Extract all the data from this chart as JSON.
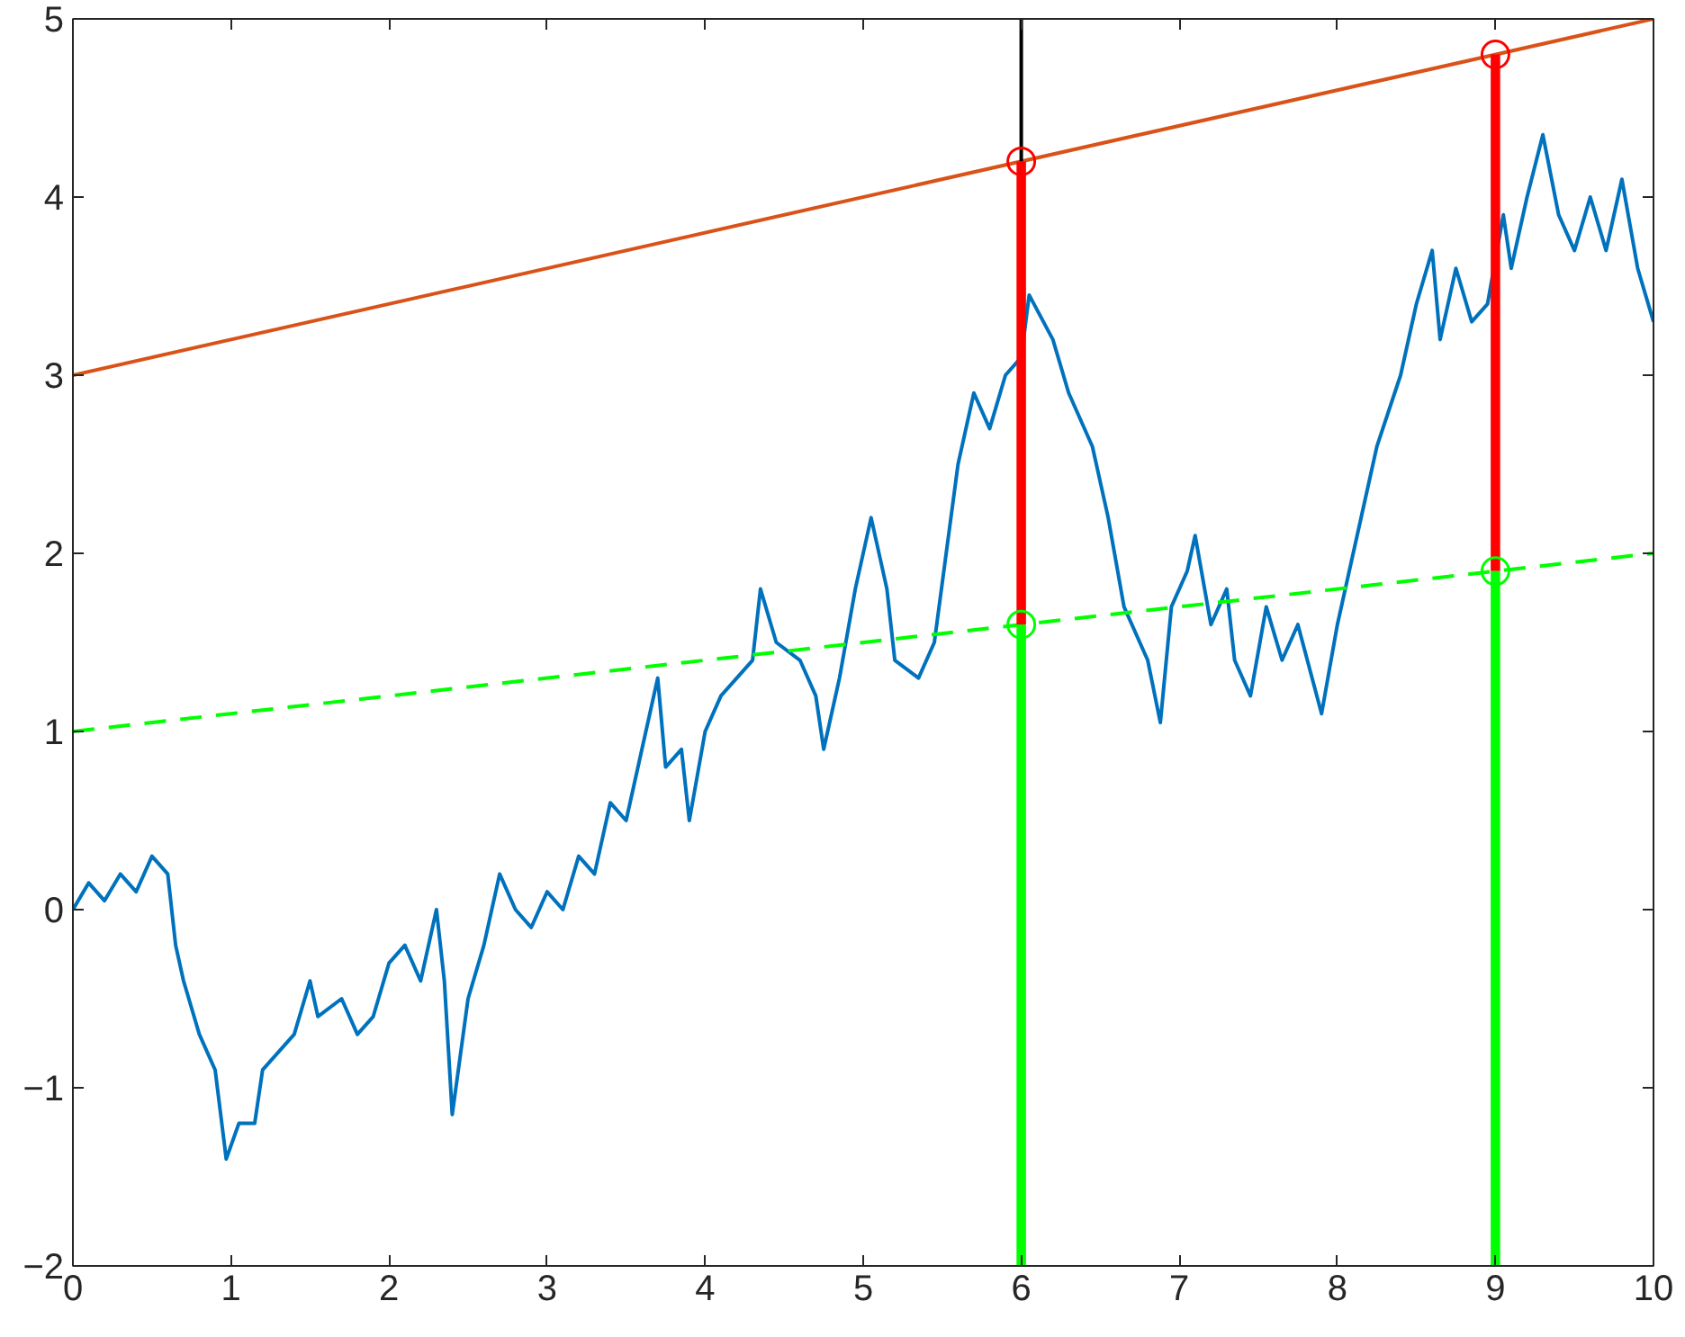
{
  "chart_data": {
    "type": "line",
    "xlim": [
      0,
      10
    ],
    "ylim": [
      -2,
      5
    ],
    "xticks": [
      0,
      1,
      2,
      3,
      4,
      5,
      6,
      7,
      8,
      9,
      10
    ],
    "yticks": [
      -2,
      -1,
      0,
      1,
      2,
      3,
      4,
      5
    ],
    "grid": false,
    "series": [
      {
        "color": "#0072bd",
        "line_style": "solid",
        "x": [
          0,
          0.1,
          0.2,
          0.3,
          0.4,
          0.5,
          0.6,
          0.65,
          0.7,
          0.8,
          0.9,
          0.97,
          1.05,
          1.15,
          1.2,
          1.3,
          1.4,
          1.5,
          1.55,
          1.7,
          1.8,
          1.9,
          2.0,
          2.1,
          2.2,
          2.3,
          2.35,
          2.4,
          2.5,
          2.6,
          2.7,
          2.8,
          2.9,
          3.0,
          3.1,
          3.2,
          3.3,
          3.4,
          3.5,
          3.6,
          3.7,
          3.75,
          3.85,
          3.9,
          4.0,
          4.1,
          4.2,
          4.3,
          4.35,
          4.45,
          4.6,
          4.7,
          4.75,
          4.85,
          4.95,
          5.05,
          5.15,
          5.2,
          5.35,
          5.45,
          5.6,
          5.7,
          5.8,
          5.9,
          6.0,
          6.05,
          6.2,
          6.3,
          6.45,
          6.55,
          6.65,
          6.8,
          6.88,
          6.95,
          7.05,
          7.1,
          7.2,
          7.3,
          7.35,
          7.45,
          7.55,
          7.65,
          7.75,
          7.9,
          8.0,
          8.1,
          8.25,
          8.4,
          8.5,
          8.6,
          8.65,
          8.75,
          8.85,
          8.95,
          9.05,
          9.1,
          9.2,
          9.3,
          9.4,
          9.5,
          9.6,
          9.7,
          9.8,
          9.9,
          10.0
        ],
        "values": [
          0.0,
          0.15,
          0.05,
          0.2,
          0.1,
          0.3,
          0.2,
          -0.2,
          -0.4,
          -0.7,
          -0.9,
          -1.4,
          -1.2,
          -1.2,
          -0.9,
          -0.8,
          -0.7,
          -0.4,
          -0.6,
          -0.5,
          -0.7,
          -0.6,
          -0.3,
          -0.2,
          -0.4,
          0.0,
          -0.4,
          -1.15,
          -0.5,
          -0.2,
          0.2,
          0.0,
          -0.1,
          0.1,
          0.0,
          0.3,
          0.2,
          0.6,
          0.5,
          0.9,
          1.3,
          0.8,
          0.9,
          0.5,
          1.0,
          1.2,
          1.3,
          1.4,
          1.8,
          1.5,
          1.4,
          1.2,
          0.9,
          1.3,
          1.8,
          2.2,
          1.8,
          1.4,
          1.3,
          1.5,
          2.5,
          2.9,
          2.7,
          3.0,
          3.1,
          3.45,
          3.2,
          2.9,
          2.6,
          2.2,
          1.7,
          1.4,
          1.05,
          1.7,
          1.9,
          2.1,
          1.6,
          1.8,
          1.4,
          1.2,
          1.7,
          1.4,
          1.6,
          1.1,
          1.6,
          2.0,
          2.6,
          3.0,
          3.4,
          3.7,
          3.2,
          3.6,
          3.3,
          3.4,
          3.9,
          3.6,
          4.0,
          4.35,
          3.9,
          3.7,
          4.0,
          3.7,
          4.1,
          3.6,
          3.3
        ]
      },
      {
        "color": "#d95319",
        "line_style": "solid",
        "x": [
          0,
          10
        ],
        "values": [
          3,
          5
        ]
      },
      {
        "color": "#00ff00",
        "line_style": "dashed",
        "x": [
          0,
          10
        ],
        "values": [
          1,
          2
        ]
      },
      {
        "color": "#000000",
        "line_style": "solid",
        "x": [
          6,
          6
        ],
        "values": [
          4.2,
          5
        ]
      },
      {
        "type": "bar",
        "color": "#ff0000",
        "x": [
          6,
          9
        ],
        "base": [
          1.6,
          1.9
        ],
        "values": [
          2.6,
          2.9
        ]
      },
      {
        "type": "bar",
        "color": "#00ff00",
        "x": [
          6,
          9
        ],
        "base": [
          -2,
          -2
        ],
        "values": [
          3.6,
          3.9
        ]
      },
      {
        "type": "scatter",
        "color": "#ff0000",
        "marker": "circle",
        "x": [
          6,
          9
        ],
        "values": [
          4.2,
          4.8
        ]
      },
      {
        "type": "scatter",
        "color": "#00ff00",
        "marker": "circle",
        "x": [
          6,
          9
        ],
        "values": [
          1.6,
          1.9
        ]
      }
    ]
  }
}
